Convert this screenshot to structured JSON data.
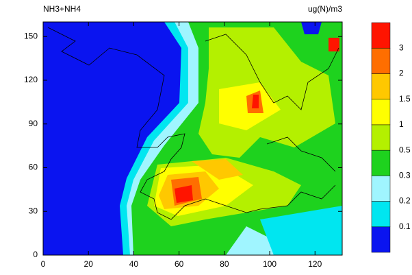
{
  "chart_data": {
    "type": "map",
    "title": "NH3+NH4",
    "units": "ug(N)/m3",
    "xlim": [
      0,
      132
    ],
    "xticks": [
      0,
      20,
      40,
      60,
      80,
      100,
      120
    ],
    "ylim": [
      0,
      160
    ],
    "yticks": [
      0,
      30,
      60,
      90,
      120,
      150
    ],
    "colorbar": {
      "levels": [
        0.1,
        0.2,
        0.3,
        0.5,
        1,
        1.5,
        2,
        3
      ],
      "colors": [
        "#0a14f0",
        "#00e6f0",
        "#a0f5ff",
        "#1ed21e",
        "#b4f000",
        "#ffff00",
        "#ffc800",
        "#ff6e00",
        "#ff1400"
      ]
    }
  }
}
